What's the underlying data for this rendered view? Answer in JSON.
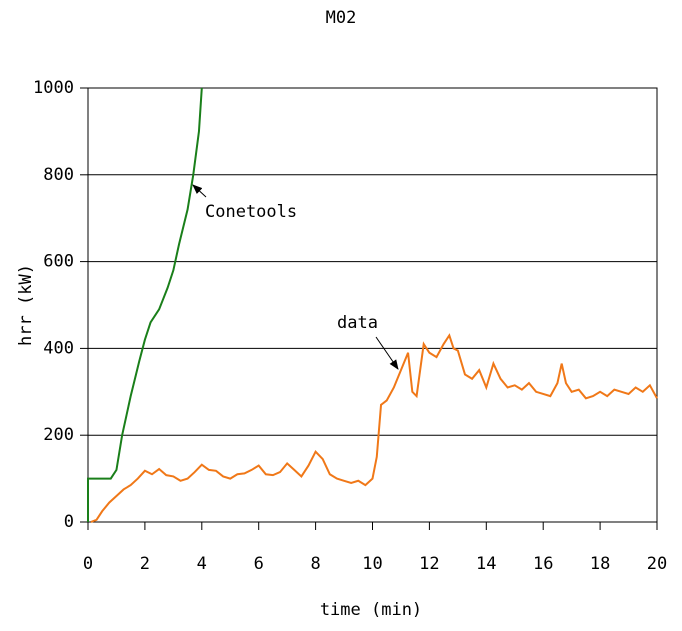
{
  "chart_data": {
    "type": "line",
    "title": "M02",
    "x_label": "time (min)",
    "y_label": "hrr (kW)",
    "xlim": [
      0,
      20
    ],
    "ylim": [
      0,
      1000
    ],
    "xticks": [
      0,
      2,
      4,
      6,
      8,
      10,
      12,
      14,
      16,
      18,
      20
    ],
    "yticks": [
      0,
      200,
      400,
      600,
      800,
      1000
    ],
    "grid": true,
    "annotations": [
      "Conetools",
      "data"
    ],
    "series": [
      {
        "name": "Conetools",
        "color": "#1a7f1a",
        "x": [
          0,
          0,
          0.5,
          0.8,
          1.0,
          1.2,
          1.5,
          1.8,
          2.0,
          2.2,
          2.5,
          2.8,
          3.0,
          3.2,
          3.5,
          3.7,
          3.9,
          4.0
        ],
        "values": [
          0,
          100,
          100,
          100,
          120,
          200,
          290,
          370,
          420,
          460,
          490,
          540,
          580,
          640,
          720,
          800,
          900,
          1000
        ]
      },
      {
        "name": "data",
        "color": "#f07818",
        "x": [
          0.1,
          0.3,
          0.5,
          0.75,
          1.0,
          1.25,
          1.5,
          1.75,
          2.0,
          2.25,
          2.5,
          2.75,
          3.0,
          3.25,
          3.5,
          3.75,
          4.0,
          4.25,
          4.5,
          4.75,
          5.0,
          5.25,
          5.5,
          5.75,
          6.0,
          6.25,
          6.5,
          6.75,
          7.0,
          7.25,
          7.5,
          7.75,
          8.0,
          8.25,
          8.5,
          8.75,
          9.0,
          9.25,
          9.5,
          9.75,
          10.0,
          10.15,
          10.3,
          10.5,
          10.75,
          11.0,
          11.25,
          11.4,
          11.55,
          11.8,
          12.0,
          12.25,
          12.5,
          12.7,
          12.85,
          13.0,
          13.25,
          13.5,
          13.75,
          14.0,
          14.25,
          14.5,
          14.75,
          15.0,
          15.25,
          15.5,
          15.75,
          16.0,
          16.25,
          16.5,
          16.65,
          16.8,
          17.0,
          17.25,
          17.5,
          17.75,
          18.0,
          18.25,
          18.5,
          18.75,
          19.0,
          19.25,
          19.5,
          19.75,
          20.0
        ],
        "values": [
          0,
          5,
          25,
          45,
          60,
          75,
          85,
          100,
          118,
          110,
          122,
          108,
          105,
          95,
          100,
          115,
          132,
          120,
          118,
          105,
          100,
          110,
          112,
          120,
          130,
          110,
          108,
          115,
          135,
          120,
          105,
          130,
          162,
          145,
          110,
          100,
          95,
          90,
          95,
          85,
          100,
          150,
          270,
          280,
          310,
          350,
          390,
          300,
          290,
          410,
          390,
          380,
          410,
          430,
          400,
          395,
          340,
          330,
          350,
          310,
          365,
          330,
          310,
          315,
          305,
          320,
          300,
          295,
          290,
          320,
          365,
          320,
          300,
          305,
          285,
          290,
          300,
          290,
          305,
          300,
          295,
          310,
          300,
          315,
          285
        ]
      }
    ]
  }
}
